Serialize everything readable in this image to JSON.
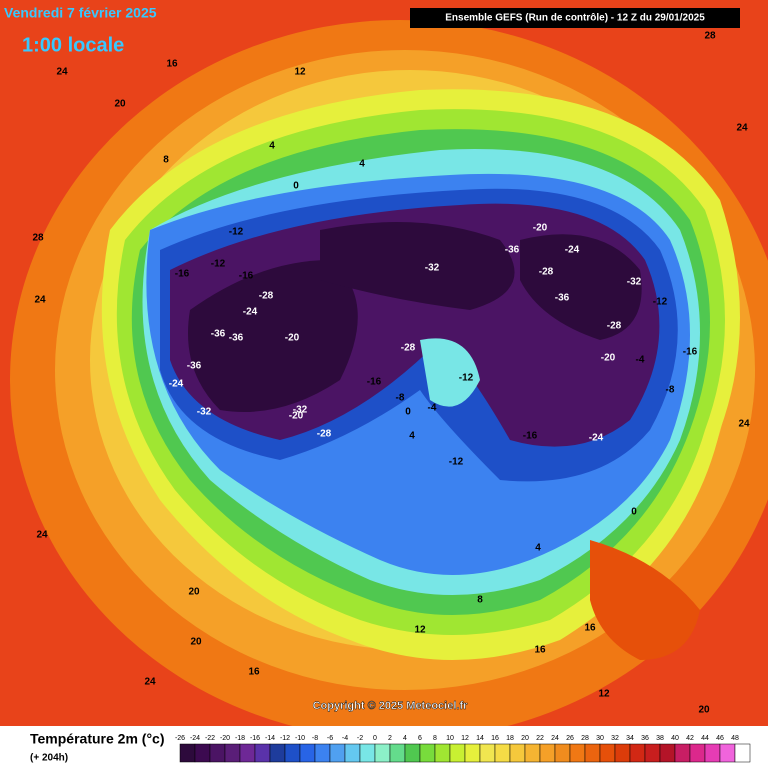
{
  "header": {
    "date": "Vendredi 7 février 2025",
    "time": "1:00 locale",
    "model": "Ensemble GEFS  (Run de contrôle)  -  12 Z du 29/01/2025"
  },
  "map_labels": [
    24,
    16,
    12,
    20,
    24,
    28,
    28,
    24,
    8,
    4,
    4,
    0,
    -12,
    -16,
    -12,
    -16,
    -24,
    -28,
    -36,
    -36,
    -32,
    -24,
    -20,
    -16,
    -28,
    -32,
    -36,
    -28,
    -36,
    -24,
    -20,
    -12,
    -8,
    -4,
    0,
    4,
    -12,
    -16,
    -24,
    -28,
    -32,
    -20,
    -16,
    -12,
    -8,
    -4,
    0,
    4,
    8,
    12,
    16,
    20,
    24,
    24,
    20,
    16,
    12,
    24,
    20,
    16,
    -36,
    -32,
    -20,
    -28
  ],
  "footer": {
    "variable": "Température 2m (°c)",
    "lead": "(+ 204h)",
    "copyright": "Copyright © 2025 Meteociel.fr"
  },
  "legend": {
    "ticks": [
      -26,
      -24,
      -22,
      -20,
      -18,
      -16,
      -14,
      -12,
      -10,
      -8,
      -6,
      -4,
      -2,
      0,
      2,
      4,
      6,
      8,
      10,
      12,
      14,
      16,
      18,
      20,
      22,
      24,
      26,
      28,
      30,
      32,
      34,
      36,
      38,
      40,
      42,
      44,
      46,
      48
    ],
    "colors": [
      "#2d0a3c",
      "#3c0a50",
      "#4b1464",
      "#5a1e78",
      "#6e2896",
      "#5a32aa",
      "#1e3c9c",
      "#1e50c8",
      "#2864e6",
      "#3c82f0",
      "#50a0f0",
      "#64c8f0",
      "#78e6e6",
      "#8cf0c8",
      "#64dc8c",
      "#50c850",
      "#78dc3c",
      "#a0e632",
      "#c8f032",
      "#e6f03c",
      "#f0e650",
      "#f5dc46",
      "#f5c83c",
      "#f5b432",
      "#f5a028",
      "#f08c1e",
      "#f07814",
      "#eb640f",
      "#e6500a",
      "#dc3c0a",
      "#d22814",
      "#c81e1e",
      "#b41428",
      "#c81e64",
      "#dc288c",
      "#e63cb4",
      "#f064dc",
      "#ffffff"
    ]
  }
}
